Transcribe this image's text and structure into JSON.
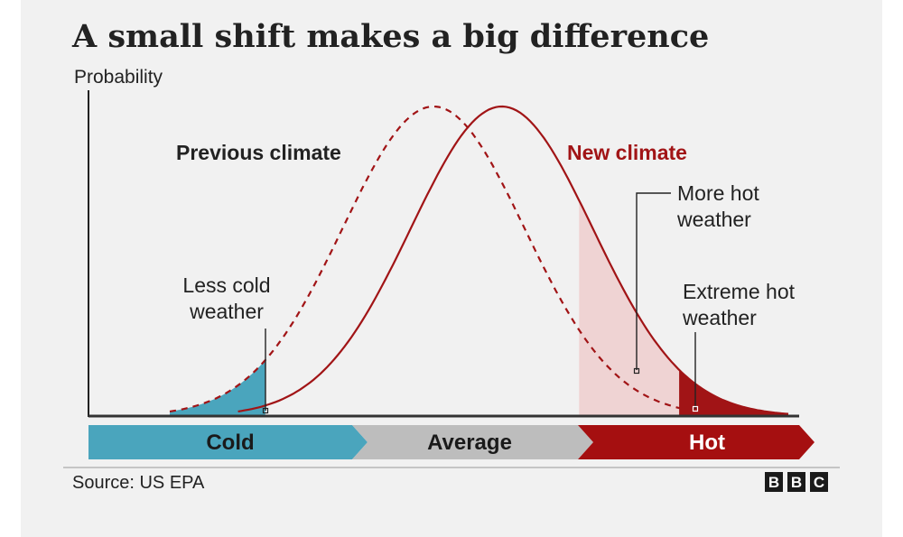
{
  "chart_data": {
    "type": "line",
    "title": "A small shift makes a big difference",
    "ylabel": "Probability",
    "series": [
      {
        "name": "Previous climate",
        "mean": 0,
        "sd": 1,
        "style": "dashed"
      },
      {
        "name": "New climate",
        "mean": 0.75,
        "sd": 1,
        "style": "solid"
      }
    ],
    "x_range": [
      -2.9,
      3.9
    ],
    "annotations": {
      "less_cold": [
        "Less cold",
        "weather"
      ],
      "more_hot": [
        "More hot",
        "weather"
      ],
      "extreme_hot": [
        "Extreme hot",
        "weather"
      ]
    },
    "bands": [
      {
        "label": "Cold",
        "color": "#4aa5bd",
        "text_color": "#1a1a1a"
      },
      {
        "label": "Average",
        "color": "#bdbdbd",
        "text_color": "#1a1a1a"
      },
      {
        "label": "Hot",
        "color": "#a50f10",
        "text_color": "#ffffff"
      }
    ],
    "source": "Source: US EPA",
    "logo": "BBC",
    "colors": {
      "new": "#a11416",
      "cold_fill": "#4aa5bd",
      "hot_fill": "#efd3d3",
      "extreme_fill": "#a11416"
    }
  }
}
